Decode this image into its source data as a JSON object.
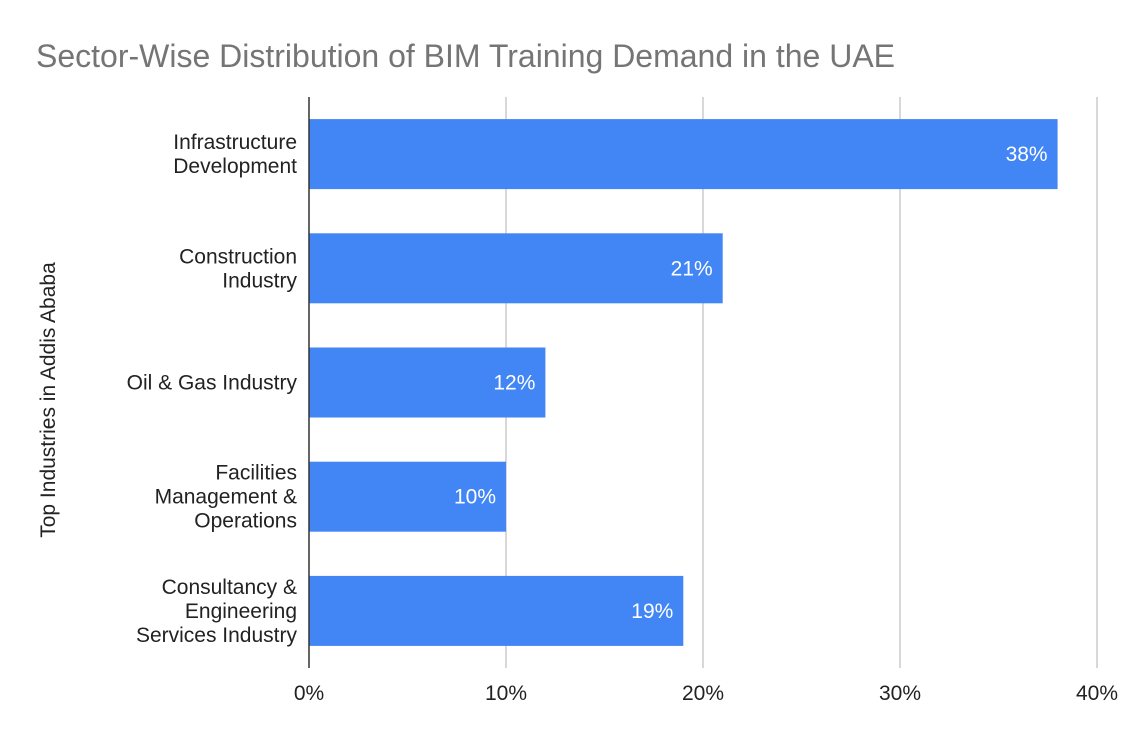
{
  "chart_data": {
    "type": "bar",
    "orientation": "horizontal",
    "title": "Sector-Wise Distribution of BIM Training Demand in the UAE",
    "ylabel": "Top Industries  in Addis Ababa",
    "xlabel": "",
    "categories": [
      [
        "Infrastructure",
        "Development"
      ],
      [
        "Construction",
        "Industry"
      ],
      [
        "Oil & Gas Industry"
      ],
      [
        "Facilities",
        "Management &",
        "Operations"
      ],
      [
        "Consultancy &",
        "Engineering",
        "Services Industry"
      ]
    ],
    "values": [
      38,
      21,
      12,
      10,
      19
    ],
    "data_labels": [
      "38%",
      "21%",
      "12%",
      "10%",
      "19%"
    ],
    "xlim": [
      0,
      40
    ],
    "x_ticks": [
      0,
      10,
      20,
      30,
      40
    ],
    "x_tick_labels": [
      "0%",
      "10%",
      "20%",
      "30%",
      "40%"
    ],
    "grid": true,
    "legend": "none",
    "bar_color": "#4285f4"
  }
}
